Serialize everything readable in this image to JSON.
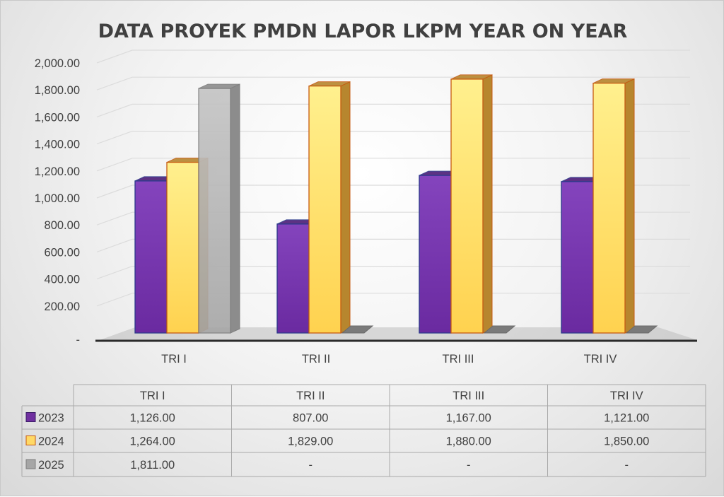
{
  "chart_data": {
    "type": "bar",
    "title": "DATA PROYEK PMDN LAPOR LKPM YEAR ON YEAR",
    "categories": [
      "TRI I",
      "TRI II",
      "TRI III",
      "TRI IV"
    ],
    "series": [
      {
        "name": "2023",
        "color": "#7030a0",
        "values": [
          1126,
          807,
          1167,
          1121
        ],
        "labels": [
          "1,126.00",
          "807.00",
          "1,167.00",
          "1,121.00"
        ]
      },
      {
        "name": "2024",
        "color": "#ffd966",
        "values": [
          1264,
          1829,
          1880,
          1850
        ],
        "labels": [
          "1,264.00",
          "1,829.00",
          "1,880.00",
          "1,850.00"
        ]
      },
      {
        "name": "2025",
        "color": "#bfbfbf",
        "values": [
          1811,
          null,
          null,
          null
        ],
        "labels": [
          "1,811.00",
          "-",
          "-",
          "-"
        ]
      }
    ],
    "yticks": [
      "-",
      "200.00",
      "400.00",
      "600.00",
      "800.00",
      "1,000.00",
      "1,200.00",
      "1,400.00",
      "1,600.00",
      "1,800.00",
      "2,000.00"
    ],
    "ylim": [
      0,
      2000
    ],
    "grid": true,
    "legend": "data-table",
    "style": "3d-clustered-column"
  }
}
